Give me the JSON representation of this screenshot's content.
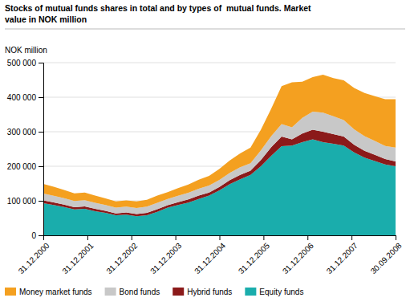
{
  "chart_data": {
    "type": "area",
    "stacked": true,
    "title": "Stocks of mutual funds shares in total and by types of  mutual funds. Market",
    "subtitle": "value in NOK million",
    "y_label": "NOK million",
    "x": [
      0,
      0.23529411764705882,
      0.47058823529411764,
      0.7058823529411765,
      0.9411764705882353,
      1.1764705882352942,
      1.411764705882353,
      1.6470588235294117,
      1.8823529411764706,
      2.1176470588235294,
      2.3529411764705883,
      2.588235294117647,
      2.823529411764706,
      3.0588235294117645,
      3.2941176470588234,
      3.5294117647058822,
      3.764705882352941,
      4,
      4.235294117647059,
      4.470588235294118,
      4.705882352941177,
      4.9411764705882355,
      5.176470588235294,
      5.411764705882353,
      5.647058823529412,
      5.882352941176471,
      6.117647058823529,
      6.352941176470588,
      6.588235294117647,
      6.823529411764706,
      7.0588235294117645,
      7.294117647058823,
      7.529411764705882,
      7.764705882352941,
      8
    ],
    "xlim": [
      0,
      8
    ],
    "xticks": [
      {
        "value": 0,
        "label": "31.12.2000"
      },
      {
        "value": 1,
        "label": "31.12.2001"
      },
      {
        "value": 2,
        "label": "31.12.2002"
      },
      {
        "value": 3,
        "label": "31.12.2003"
      },
      {
        "value": 4,
        "label": "31.12.2004"
      },
      {
        "value": 5,
        "label": "31.12.2005"
      },
      {
        "value": 6,
        "label": "31.12.2006"
      },
      {
        "value": 7,
        "label": "31.12.2007"
      },
      {
        "value": 8,
        "label": "30.09.2008"
      }
    ],
    "ylim": [
      0,
      500000
    ],
    "yticks": [
      0,
      {
        "value": 100000,
        "label": "100 000"
      },
      {
        "value": 200000,
        "label": "200 000"
      },
      {
        "value": 300000,
        "label": "300 000"
      },
      {
        "value": 400000,
        "label": "400 000"
      },
      {
        "value": 500000,
        "label": "500 000"
      }
    ],
    "grid": true,
    "legend": "bottom",
    "series": [
      {
        "name": "Equity funds",
        "color": "#1aadac",
        "values": [
          93000,
          88000,
          82000,
          75000,
          77000,
          70000,
          65000,
          58000,
          60000,
          55000,
          58000,
          68000,
          80000,
          88000,
          95000,
          105000,
          115000,
          130000,
          148000,
          162000,
          175000,
          200000,
          230000,
          258000,
          260000,
          270000,
          278000,
          270000,
          265000,
          260000,
          240000,
          225000,
          215000,
          205000,
          200000
        ]
      },
      {
        "name": "Hybrid funds",
        "color": "#8B1a1a",
        "values": [
          8000,
          7500,
          7000,
          6500,
          7000,
          6500,
          6000,
          5500,
          6000,
          6500,
          7000,
          7500,
          7000,
          8000,
          9000,
          10000,
          9000,
          10000,
          12000,
          13000,
          12000,
          18000,
          25000,
          28000,
          18000,
          25000,
          28000,
          30000,
          28000,
          26000,
          22000,
          20000,
          18000,
          16000,
          14000
        ]
      },
      {
        "name": "Bond funds",
        "color": "#c8c8c8",
        "values": [
          20000,
          19000,
          18500,
          18000,
          18000,
          17500,
          17000,
          16500,
          17000,
          17500,
          18000,
          18500,
          18000,
          18500,
          19000,
          20000,
          20000,
          20500,
          21000,
          22000,
          22000,
          28000,
          32000,
          36000,
          35000,
          45000,
          52000,
          55000,
          52000,
          48000,
          45000,
          42000,
          40000,
          38000,
          40000
        ]
      },
      {
        "name": "Money market funds",
        "color": "#f4a020",
        "values": [
          28000,
          26000,
          24000,
          22000,
          22000,
          21000,
          19000,
          18000,
          18000,
          19000,
          20000,
          21000,
          20000,
          22000,
          24000,
          26000,
          28000,
          32000,
          36000,
          40000,
          45000,
          60000,
          80000,
          110000,
          130000,
          105000,
          100000,
          110000,
          110000,
          115000,
          120000,
          125000,
          130000,
          135000,
          140000
        ]
      }
    ]
  }
}
